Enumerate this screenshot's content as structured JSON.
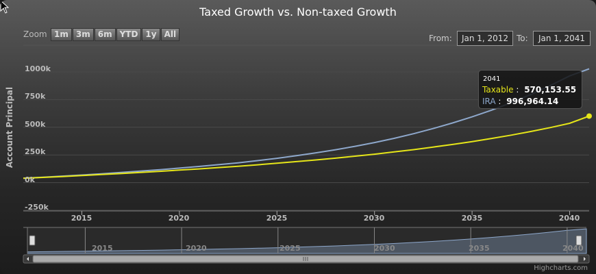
{
  "chart_data": {
    "type": "line",
    "title": "Taxed Growth vs. Non-taxed Growth",
    "ylabel": "Account Principal",
    "xlabel": "",
    "ylim": [
      -250000,
      1000000
    ],
    "yticks": [
      "1000k",
      "750k",
      "500k",
      "250k",
      "0k",
      "-250k"
    ],
    "ytick_values": [
      1000000,
      750000,
      500000,
      250000,
      0,
      -250000
    ],
    "xlim": [
      "2012-01-01",
      "2041-01-01"
    ],
    "xticks": [
      "2015",
      "2020",
      "2025",
      "2030",
      "2035",
      "2040"
    ],
    "x": [
      2012,
      2013,
      2014,
      2015,
      2016,
      2017,
      2018,
      2019,
      2020,
      2021,
      2022,
      2023,
      2024,
      2025,
      2026,
      2027,
      2028,
      2029,
      2030,
      2031,
      2032,
      2033,
      2034,
      2035,
      2036,
      2037,
      2038,
      2039,
      2040,
      2041
    ],
    "series": [
      {
        "name": "IRA",
        "color": "#8ea8cc",
        "values": [
          9000,
          18000,
          28000,
          38000,
          49000,
          61000,
          73000,
          86000,
          100000,
          115000,
          131000,
          148000,
          168000,
          189000,
          212000,
          238000,
          266000,
          297000,
          331000,
          369000,
          411000,
          457000,
          508000,
          563000,
          624000,
          691000,
          764000,
          845000,
          933000,
          996964.14
        ]
      },
      {
        "name": "Taxable",
        "color": "#e6e619",
        "values": [
          8000,
          16000,
          24000,
          33000,
          42000,
          51000,
          61000,
          71000,
          82000,
          93000,
          105000,
          117000,
          130000,
          144000,
          159000,
          174000,
          190000,
          208000,
          226000,
          246000,
          267000,
          290000,
          314000,
          340000,
          368000,
          398000,
          431000,
          466000,
          505000,
          570153.55
        ]
      }
    ],
    "legend": "none",
    "grid": true
  },
  "toolbar": {
    "zoom_label": "Zoom",
    "zoom_buttons": [
      "1m",
      "3m",
      "6m",
      "YTD",
      "1y",
      "All"
    ],
    "from_label": "From:",
    "from_value": "Jan 1, 2012",
    "to_label": "To:",
    "to_value": "Jan 1, 2041"
  },
  "tooltip": {
    "x": "2041",
    "rows": [
      {
        "name": "Taxable",
        "value": "570,153.55",
        "color": "#e6e619"
      },
      {
        "name": "IRA",
        "value": "996,964.14",
        "color": "#8ea8cc"
      }
    ]
  },
  "navigator": {
    "xticks": [
      "2015",
      "2020",
      "2025",
      "2030",
      "2035",
      "2040"
    ]
  },
  "credits": "Highcharts.com"
}
